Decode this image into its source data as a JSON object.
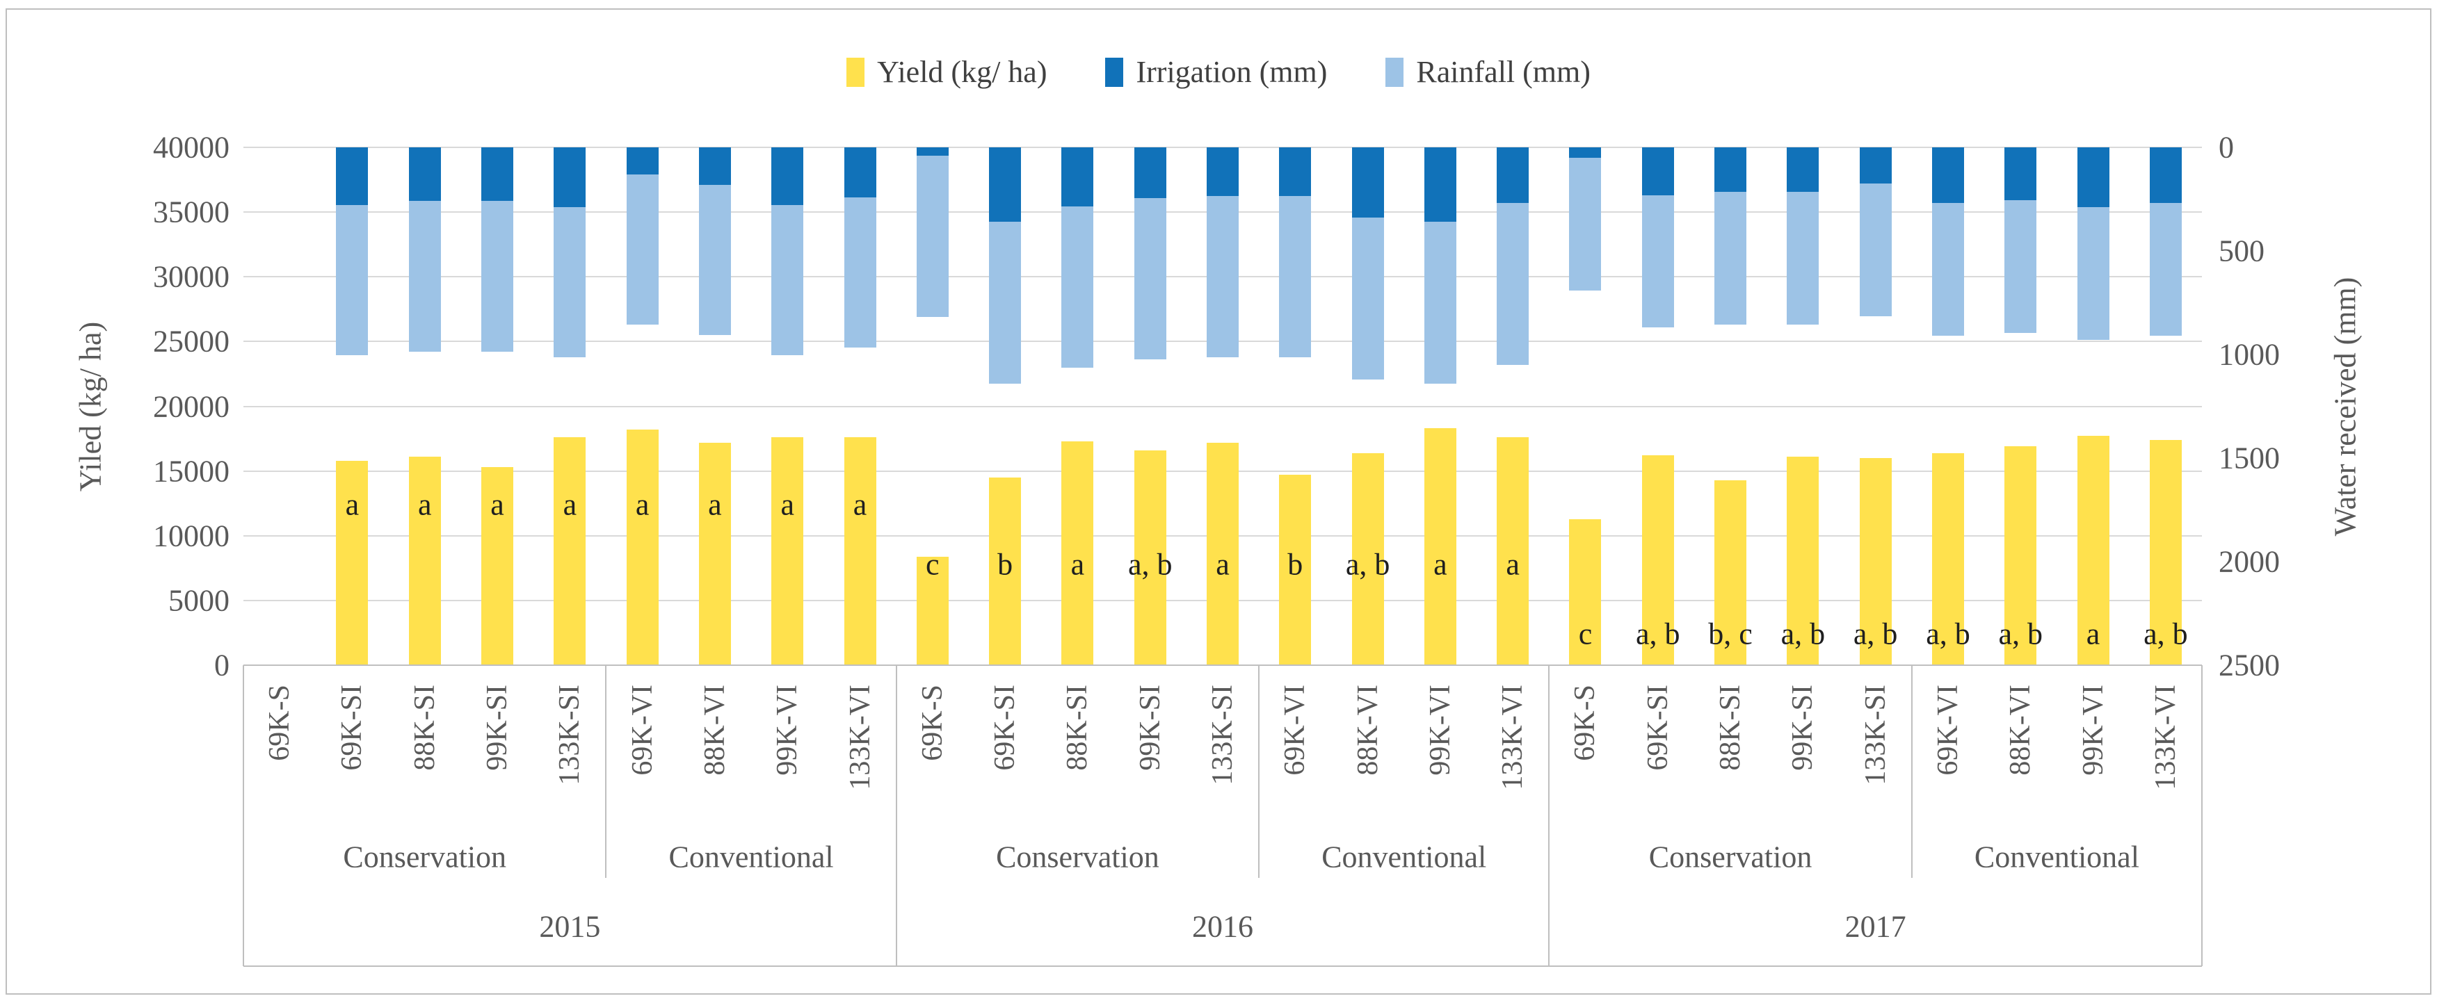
{
  "chart_data": {
    "type": "bar",
    "title": "",
    "legend": [
      {
        "label": "Yield (kg/ ha)",
        "series": "yield",
        "color": "#FFE14D"
      },
      {
        "label": "Irrigation (mm)",
        "series": "irrigation",
        "color": "#1172B9"
      },
      {
        "label": "Rainfall (mm)",
        "series": "rainfall",
        "color": "#9DC3E6"
      }
    ],
    "left_axis": {
      "title": "Yiled (kg/ ha)",
      "min": 0,
      "max": 40000,
      "tick_step": 5000,
      "ticks": [
        40000,
        35000,
        30000,
        25000,
        20000,
        15000,
        10000,
        5000,
        0
      ]
    },
    "right_axis": {
      "title": "Water received (mm)",
      "min": 0,
      "max": 2500,
      "tick_step": 500,
      "inverted": true,
      "ticks": [
        0,
        500,
        1000,
        1500,
        2000,
        2500
      ]
    },
    "grid": true,
    "legend_position": "top",
    "years": [
      {
        "year": "2015",
        "letter_y_kg": 12400,
        "groups": [
          {
            "name": "Conservation",
            "categories": [
              {
                "label": "69K-S",
                "yield": null,
                "irrigation": null,
                "rainfall": null,
                "letter": null
              },
              {
                "label": "69K-SI",
                "yield": 15800,
                "irrigation": 280,
                "rainfall": 725,
                "letter": "a"
              },
              {
                "label": "88K-SI",
                "yield": 16100,
                "irrigation": 260,
                "rainfall": 725,
                "letter": "a"
              },
              {
                "label": "99K-SI",
                "yield": 15300,
                "irrigation": 260,
                "rainfall": 725,
                "letter": "a"
              },
              {
                "label": "133K-SI",
                "yield": 17600,
                "irrigation": 290,
                "rainfall": 725,
                "letter": "a"
              }
            ]
          },
          {
            "name": "Conventional",
            "categories": [
              {
                "label": "69K-VI",
                "yield": 18200,
                "irrigation": 130,
                "rainfall": 725,
                "letter": "a"
              },
              {
                "label": "88K-VI",
                "yield": 17200,
                "irrigation": 180,
                "rainfall": 725,
                "letter": "a"
              },
              {
                "label": "99K-VI",
                "yield": 17600,
                "irrigation": 280,
                "rainfall": 725,
                "letter": "a"
              },
              {
                "label": "133K-VI",
                "yield": 17600,
                "irrigation": 240,
                "rainfall": 725,
                "letter": "a"
              }
            ]
          }
        ]
      },
      {
        "year": "2016",
        "letter_y_kg": 7800,
        "groups": [
          {
            "name": "Conservation",
            "categories": [
              {
                "label": "69K-S",
                "yield": 8400,
                "irrigation": 40,
                "rainfall": 780,
                "letter": "c"
              },
              {
                "label": "69K-SI",
                "yield": 14500,
                "irrigation": 360,
                "rainfall": 780,
                "letter": "b"
              },
              {
                "label": "88K-SI",
                "yield": 17300,
                "irrigation": 285,
                "rainfall": 780,
                "letter": "a"
              },
              {
                "label": "99K-SI",
                "yield": 16600,
                "irrigation": 245,
                "rainfall": 780,
                "letter": "a, b"
              },
              {
                "label": "133K-SI",
                "yield": 17200,
                "irrigation": 235,
                "rainfall": 780,
                "letter": "a"
              }
            ]
          },
          {
            "name": "Conventional",
            "categories": [
              {
                "label": "69K-VI",
                "yield": 14700,
                "irrigation": 235,
                "rainfall": 780,
                "letter": "b"
              },
              {
                "label": "88K-VI",
                "yield": 16400,
                "irrigation": 340,
                "rainfall": 780,
                "letter": "a, b"
              },
              {
                "label": "99K-VI",
                "yield": 18300,
                "irrigation": 360,
                "rainfall": 780,
                "letter": "a"
              },
              {
                "label": "133K-VI",
                "yield": 17600,
                "irrigation": 270,
                "rainfall": 780,
                "letter": "a"
              }
            ]
          }
        ]
      },
      {
        "year": "2017",
        "letter_y_kg": 2400,
        "groups": [
          {
            "name": "Conservation",
            "categories": [
              {
                "label": "69K-S",
                "yield": 11300,
                "irrigation": 50,
                "rainfall": 640,
                "letter": "c"
              },
              {
                "label": "69K-SI",
                "yield": 16200,
                "irrigation": 230,
                "rainfall": 640,
                "letter": "a, b"
              },
              {
                "label": "88K-SI",
                "yield": 14300,
                "irrigation": 215,
                "rainfall": 640,
                "letter": "b, c"
              },
              {
                "label": "99K-SI",
                "yield": 16100,
                "irrigation": 215,
                "rainfall": 640,
                "letter": "a, b"
              },
              {
                "label": "133K-SI",
                "yield": 16000,
                "irrigation": 175,
                "rainfall": 640,
                "letter": "a, b"
              }
            ]
          },
          {
            "name": "Conventional",
            "categories": [
              {
                "label": "69K-VI",
                "yield": 16400,
                "irrigation": 270,
                "rainfall": 640,
                "letter": "a, b"
              },
              {
                "label": "88K-VI",
                "yield": 16900,
                "irrigation": 255,
                "rainfall": 640,
                "letter": "a, b"
              },
              {
                "label": "99K-VI",
                "yield": 17700,
                "irrigation": 290,
                "rainfall": 640,
                "letter": "a"
              },
              {
                "label": "133K-VI",
                "yield": 17400,
                "irrigation": 270,
                "rainfall": 640,
                "letter": "a, b"
              }
            ]
          }
        ]
      }
    ],
    "colors": {
      "yield": "#FFE14D",
      "irrigation": "#1172B9",
      "rainfall": "#9DC3E6",
      "gridline": "#D9D9D9",
      "axis_line": "#BFBFBF",
      "tick_text": "#595959",
      "letter_text": "#1F1F1F"
    }
  }
}
